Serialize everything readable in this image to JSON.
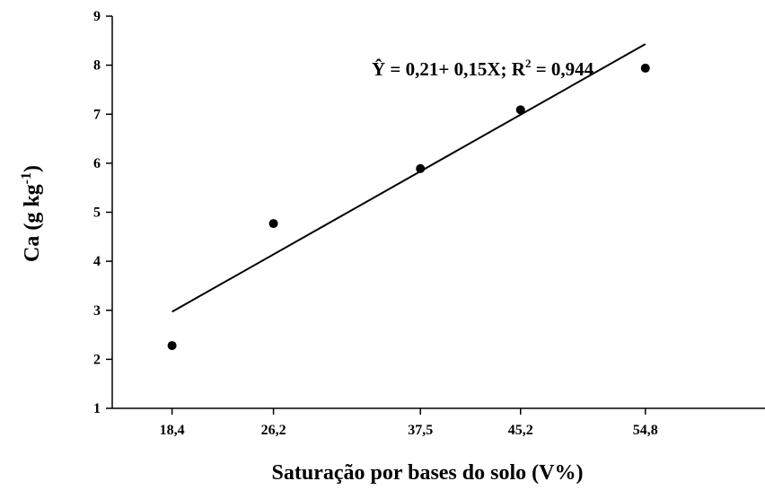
{
  "chart_data": {
    "type": "scatter",
    "title": "",
    "xlabel": "Saturação por bases do solo (V%)",
    "ylabel": {
      "base": "Ca (g kg",
      "sup": "-1",
      "close": ")"
    },
    "xlim": [
      13.8,
      64.0
    ],
    "ylim": [
      1,
      9
    ],
    "x_ticks": [
      18.4,
      26.2,
      37.5,
      45.2,
      54.8
    ],
    "x_tick_labels": [
      "18,4",
      "26,2",
      "37,5",
      "45,2",
      "54,8"
    ],
    "y_ticks": [
      1,
      2,
      3,
      4,
      5,
      6,
      7,
      8,
      9
    ],
    "y_tick_labels": [
      "1",
      "2",
      "3",
      "4",
      "5",
      "6",
      "7",
      "8",
      "9"
    ],
    "series": [
      {
        "x": [
          18.4,
          26.2,
          37.5,
          45.2,
          54.8
        ],
        "y": [
          2.28,
          4.77,
          5.89,
          7.09,
          7.94
        ],
        "color": "#000000"
      }
    ],
    "regression": {
      "x_range": [
        18.4,
        54.8
      ],
      "intercept": 0.21,
      "slope": 0.15,
      "color": "#000000"
    },
    "annotation": {
      "prefix": "Ŷ = 0,21+ 0,15X; R",
      "sup": "2",
      "suffix": " = 0,944"
    },
    "grid": false,
    "legend": "none"
  }
}
